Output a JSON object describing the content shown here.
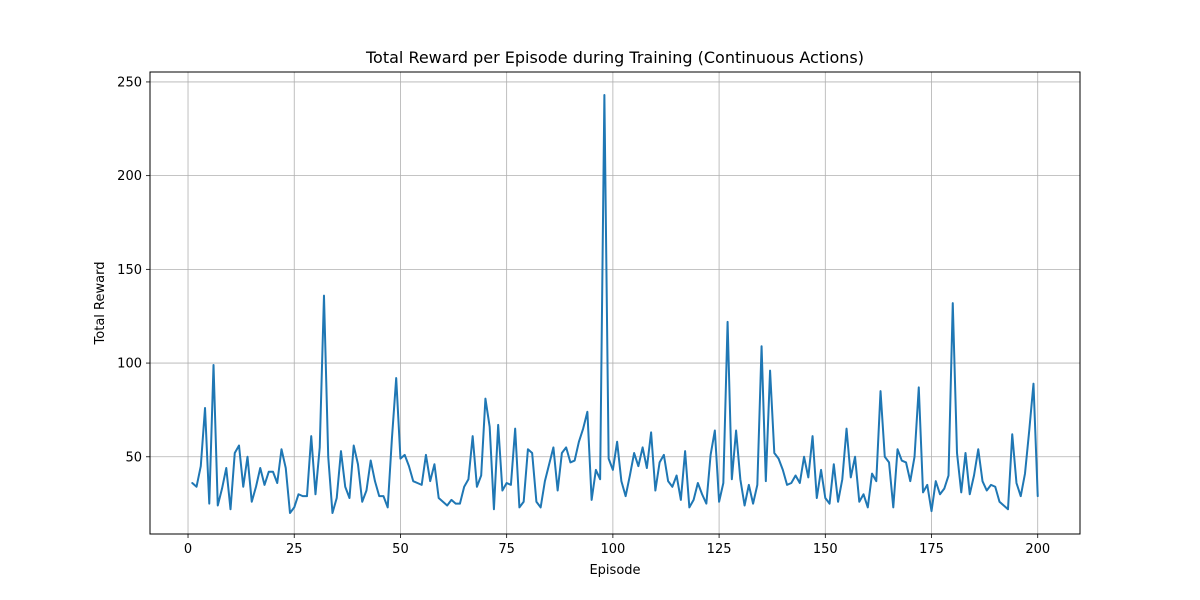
{
  "chart_data": {
    "type": "line",
    "title": "Total Reward per Episode during Training (Continuous Actions)",
    "xlabel": "Episode",
    "ylabel": "Total Reward",
    "xlim": [
      -8.95,
      209.95
    ],
    "ylim": [
      8.8,
      255.3
    ],
    "xticks": [
      0,
      25,
      50,
      75,
      100,
      125,
      150,
      175,
      200
    ],
    "yticks": [
      50,
      100,
      150,
      200,
      250
    ],
    "grid": true,
    "series": [
      {
        "color": "#1f77b4",
        "x": [
          1,
          2,
          3,
          4,
          5,
          6,
          7,
          8,
          9,
          10,
          11,
          12,
          13,
          14,
          15,
          16,
          17,
          18,
          19,
          20,
          21,
          22,
          23,
          24,
          25,
          26,
          27,
          28,
          29,
          30,
          31,
          32,
          33,
          34,
          35,
          36,
          37,
          38,
          39,
          40,
          41,
          42,
          43,
          44,
          45,
          46,
          47,
          48,
          49,
          50,
          51,
          52,
          53,
          54,
          55,
          56,
          57,
          58,
          59,
          60,
          61,
          62,
          63,
          64,
          65,
          66,
          67,
          68,
          69,
          70,
          71,
          72,
          73,
          74,
          75,
          76,
          77,
          78,
          79,
          80,
          81,
          82,
          83,
          84,
          85,
          86,
          87,
          88,
          89,
          90,
          91,
          92,
          93,
          94,
          95,
          96,
          97,
          98,
          99,
          100,
          101,
          102,
          103,
          104,
          105,
          106,
          107,
          108,
          109,
          110,
          111,
          112,
          113,
          114,
          115,
          116,
          117,
          118,
          119,
          120,
          121,
          122,
          123,
          124,
          125,
          126,
          127,
          128,
          129,
          130,
          131,
          132,
          133,
          134,
          135,
          136,
          137,
          138,
          139,
          140,
          141,
          142,
          143,
          144,
          145,
          146,
          147,
          148,
          149,
          150,
          151,
          152,
          153,
          154,
          155,
          156,
          157,
          158,
          159,
          160,
          161,
          162,
          163,
          164,
          165,
          166,
          167,
          168,
          169,
          170,
          171,
          172,
          173,
          174,
          175,
          176,
          177,
          178,
          179,
          180,
          181,
          182,
          183,
          184,
          185,
          186,
          187,
          188,
          189,
          190,
          191,
          192,
          193,
          194,
          195,
          196,
          197,
          198,
          199,
          200
        ],
        "y": [
          36,
          34,
          45,
          76,
          25,
          99,
          24,
          33,
          44,
          22,
          52,
          56,
          34,
          50,
          26,
          34,
          44,
          35,
          42,
          42,
          36,
          54,
          44,
          20,
          23,
          30,
          29,
          29,
          61,
          30,
          55,
          136,
          50,
          20,
          28,
          53,
          34,
          28,
          56,
          46,
          26,
          32,
          48,
          37,
          29,
          29,
          23,
          60,
          92,
          49,
          51,
          45,
          37,
          36,
          35,
          51,
          37,
          46,
          28,
          26,
          24,
          27,
          25,
          25,
          34,
          38,
          61,
          34,
          40,
          81,
          66,
          22,
          67,
          32,
          36,
          35,
          65,
          23,
          26,
          54,
          52,
          26,
          23,
          37,
          46,
          55,
          32,
          52,
          55,
          47,
          48,
          58,
          65,
          74,
          27,
          43,
          38,
          243,
          49,
          43,
          58,
          37,
          29,
          40,
          52,
          45,
          55,
          44,
          63,
          32,
          47,
          51,
          37,
          34,
          40,
          27,
          53,
          23,
          27,
          36,
          30,
          25,
          51,
          64,
          26,
          36,
          122,
          38,
          64,
          38,
          24,
          35,
          25,
          35,
          109,
          37,
          96,
          52,
          49,
          43,
          35,
          36,
          40,
          36,
          50,
          39,
          61,
          28,
          43,
          28,
          25,
          46,
          26,
          38,
          65,
          39,
          50,
          26,
          30,
          23,
          41,
          37,
          85,
          50,
          47,
          23,
          54,
          48,
          47,
          37,
          50,
          87,
          31,
          35,
          21,
          37,
          30,
          33,
          40,
          132,
          52,
          31,
          52,
          30,
          40,
          54,
          37,
          32,
          35,
          34,
          26,
          24,
          22,
          62,
          36,
          29,
          41,
          64,
          89,
          29
        ]
      }
    ]
  }
}
